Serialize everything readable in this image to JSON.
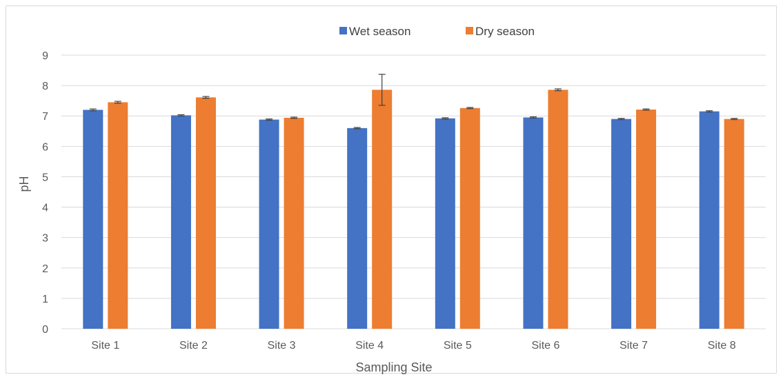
{
  "chart_data": {
    "type": "bar",
    "title": "",
    "xlabel": "Sampling Site",
    "ylabel": "pH",
    "ylim": [
      0,
      9
    ],
    "yticks": [
      0,
      1,
      2,
      3,
      4,
      5,
      6,
      7,
      8,
      9
    ],
    "grid": true,
    "legend_position": "top",
    "categories": [
      "Site 1",
      "Site 2",
      "Site 3",
      "Site 4",
      "Site 5",
      "Site 6",
      "Site 7",
      "Site 8"
    ],
    "series": [
      {
        "name": "Wet season",
        "color": "#4472C4",
        "values": [
          7.2,
          7.02,
          6.88,
          6.6,
          6.92,
          6.95,
          6.9,
          7.15
        ],
        "errors": [
          0.03,
          0.02,
          0.02,
          0.02,
          0.02,
          0.02,
          0.02,
          0.02
        ]
      },
      {
        "name": "Dry season",
        "color": "#ED7D31",
        "values": [
          7.45,
          7.61,
          6.94,
          7.86,
          7.26,
          7.86,
          7.21,
          6.9
        ],
        "errors": [
          0.03,
          0.03,
          0.02,
          0.51,
          0.02,
          0.03,
          0.02,
          0.02
        ]
      }
    ]
  },
  "colors": {
    "gridline": "#d9d9d9",
    "errorbar": "#404040",
    "text": "#595959"
  }
}
